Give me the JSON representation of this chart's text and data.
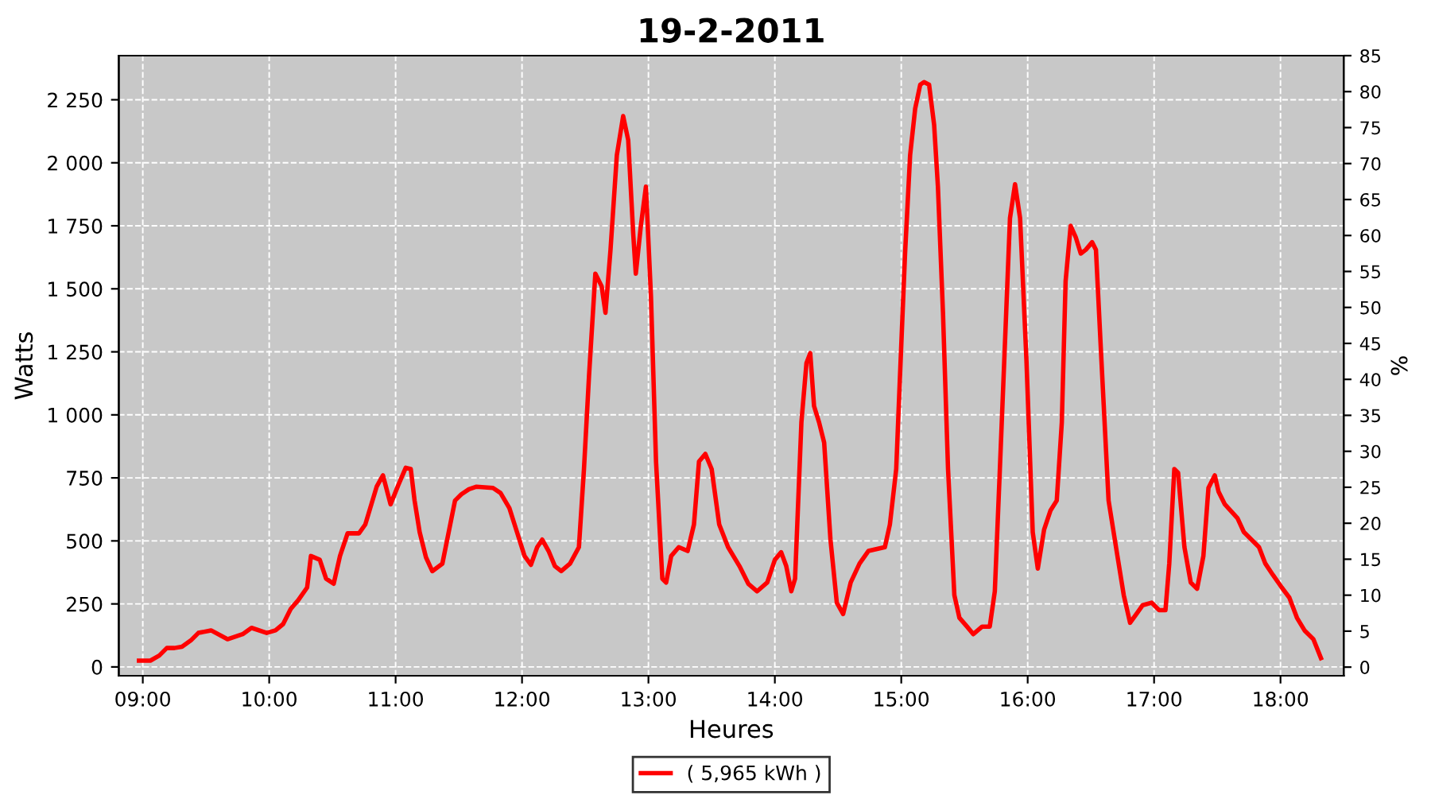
{
  "chart_data": {
    "type": "line",
    "title": "19-2-2011",
    "xlabel": "Heures",
    "ylabel": "Watts",
    "y2label": "%",
    "x": [
      8.97,
      9.06,
      9.13,
      9.19,
      9.25,
      9.31,
      9.38,
      9.44,
      9.54,
      9.67,
      9.79,
      9.86,
      9.98,
      10.05,
      10.11,
      10.17,
      10.23,
      10.3,
      10.33,
      10.4,
      10.45,
      10.51,
      10.56,
      10.62,
      10.71,
      10.76,
      10.85,
      10.9,
      10.96,
      11.02,
      11.08,
      11.12,
      11.15,
      11.19,
      11.24,
      11.29,
      11.37,
      11.42,
      11.47,
      11.52,
      11.58,
      11.64,
      11.77,
      11.83,
      11.9,
      11.96,
      12.02,
      12.07,
      12.12,
      12.16,
      12.21,
      12.26,
      12.31,
      12.38,
      12.45,
      12.49,
      12.53,
      12.58,
      12.63,
      12.66,
      12.7,
      12.75,
      12.8,
      12.84,
      12.88,
      12.9,
      12.94,
      12.98,
      13.02,
      13.06,
      13.11,
      13.14,
      13.18,
      13.24,
      13.31,
      13.36,
      13.4,
      13.45,
      13.5,
      13.56,
      13.63,
      13.72,
      13.79,
      13.86,
      13.94,
      14.0,
      14.05,
      14.09,
      14.13,
      14.16,
      14.21,
      14.25,
      14.28,
      14.31,
      14.35,
      14.39,
      14.44,
      14.49,
      14.54,
      14.6,
      14.67,
      14.74,
      14.87,
      14.91,
      14.96,
      14.99,
      15.03,
      15.07,
      15.11,
      15.15,
      15.18,
      15.22,
      15.26,
      15.29,
      15.33,
      15.37,
      15.42,
      15.46,
      15.52,
      15.57,
      15.64,
      15.7,
      15.74,
      15.78,
      15.83,
      15.86,
      15.9,
      15.94,
      15.99,
      16.04,
      16.08,
      16.13,
      16.18,
      16.23,
      16.27,
      16.3,
      16.34,
      16.38,
      16.42,
      16.46,
      16.51,
      16.54,
      16.58,
      16.64,
      16.71,
      16.76,
      16.81,
      16.86,
      16.91,
      16.98,
      17.04,
      17.09,
      17.12,
      17.16,
      17.19,
      17.24,
      17.29,
      17.34,
      17.39,
      17.43,
      17.48,
      17.51,
      17.56,
      17.66,
      17.71,
      17.83,
      17.88,
      17.94,
      18.01,
      18.07,
      18.13,
      18.19,
      18.26,
      18.32
    ],
    "series": [
      {
        "name": "( 5,965 kWh )",
        "color": "#ff0000",
        "values": [
          25,
          25,
          45,
          75,
          75,
          80,
          105,
          135,
          145,
          110,
          130,
          155,
          135,
          145,
          170,
          230,
          265,
          315,
          440,
          425,
          350,
          330,
          440,
          530,
          530,
          565,
          715,
          760,
          645,
          720,
          790,
          785,
          660,
          535,
          435,
          380,
          410,
          535,
          660,
          685,
          705,
          715,
          710,
          690,
          630,
          535,
          440,
          405,
          475,
          505,
          460,
          400,
          380,
          410,
          475,
          785,
          1155,
          1560,
          1510,
          1405,
          1655,
          2030,
          2185,
          2090,
          1715,
          1560,
          1750,
          1905,
          1470,
          815,
          350,
          335,
          440,
          475,
          460,
          565,
          815,
          845,
          785,
          565,
          475,
          400,
          330,
          300,
          335,
          425,
          455,
          400,
          300,
          350,
          970,
          1205,
          1245,
          1035,
          970,
          890,
          505,
          255,
          210,
          335,
          410,
          460,
          475,
          565,
          785,
          1155,
          1640,
          2030,
          2215,
          2310,
          2320,
          2310,
          2150,
          1905,
          1405,
          785,
          285,
          195,
          160,
          130,
          160,
          160,
          300,
          785,
          1405,
          1780,
          1915,
          1780,
          1220,
          535,
          390,
          545,
          620,
          660,
          970,
          1530,
          1750,
          1705,
          1640,
          1655,
          1685,
          1655,
          1250,
          660,
          440,
          285,
          175,
          210,
          245,
          255,
          225,
          225,
          410,
          785,
          770,
          475,
          335,
          310,
          440,
          710,
          760,
          695,
          645,
          590,
          535,
          475,
          410,
          365,
          315,
          275,
          195,
          145,
          110,
          35
        ]
      }
    ],
    "xlim": [
      8.81,
      18.5
    ],
    "xticks": [
      {
        "value": 9,
        "label": "09:00"
      },
      {
        "value": 10,
        "label": "10:00"
      },
      {
        "value": 11,
        "label": "11:00"
      },
      {
        "value": 12,
        "label": "12:00"
      },
      {
        "value": 13,
        "label": "13:00"
      },
      {
        "value": 14,
        "label": "14:00"
      },
      {
        "value": 15,
        "label": "15:00"
      },
      {
        "value": 16,
        "label": "16:00"
      },
      {
        "value": 17,
        "label": "17:00"
      },
      {
        "value": 18,
        "label": "18:00"
      }
    ],
    "ylim": [
      -35,
      2425
    ],
    "yticks": [
      0,
      250,
      500,
      750,
      {
        "value": 1000,
        "label": "1 000"
      },
      {
        "value": 1250,
        "label": "1 250"
      },
      {
        "value": 1500,
        "label": "1 500"
      },
      {
        "value": 1750,
        "label": "1 750"
      },
      {
        "value": 2000,
        "label": "2 000"
      },
      {
        "value": 2250,
        "label": "2 250"
      }
    ],
    "y2lim": [
      -1.2,
      85
    ],
    "y2ticks": [
      0,
      5,
      10,
      15,
      20,
      25,
      30,
      35,
      40,
      45,
      50,
      55,
      60,
      65,
      70,
      75,
      80,
      85
    ],
    "grid": true,
    "legend": "bottom",
    "marker": "none",
    "line_style": "solid"
  }
}
